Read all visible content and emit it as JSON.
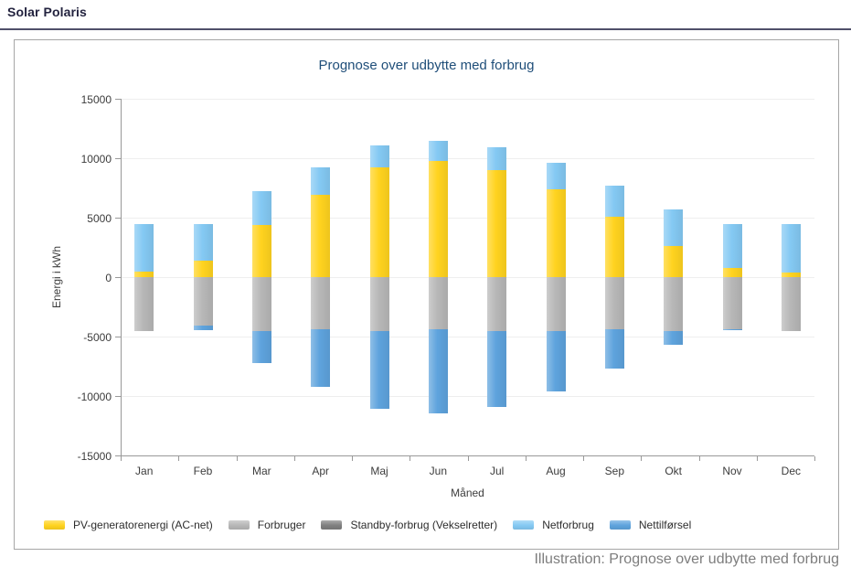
{
  "page": {
    "header_title": "Solar Polaris",
    "caption": "Illustration: Prognose over udbytte med forbrug"
  },
  "chart_data": {
    "type": "bar",
    "stacked": true,
    "title": "Prognose over udbytte med forbrug",
    "xlabel": "Måned",
    "ylabel": "Energi i kWh",
    "ylim": [
      -15000,
      15000
    ],
    "yticks": [
      15000,
      10000,
      5000,
      0,
      -5000,
      -10000,
      -15000
    ],
    "grid": true,
    "legend_position": "bottom",
    "categories": [
      "Jan",
      "Feb",
      "Mar",
      "Apr",
      "Maj",
      "Jun",
      "Jul",
      "Aug",
      "Sep",
      "Okt",
      "Nov",
      "Dec"
    ],
    "series": [
      {
        "name": "PV-generatorenergi (AC-net)",
        "color": "#ffd31f",
        "values": [
          500,
          1400,
          4400,
          6900,
          9200,
          9800,
          9000,
          7400,
          5100,
          2600,
          800,
          400
        ]
      },
      {
        "name": "Forbruger",
        "color": "#b7b7b7",
        "values": [
          -4500,
          -4050,
          -4500,
          -4350,
          -4500,
          -4350,
          -4500,
          -4500,
          -4350,
          -4500,
          -4350,
          -4500
        ]
      },
      {
        "name": "Standby-forbrug (Vekselretter)",
        "color": "#7f7f7f",
        "values": [
          0,
          0,
          0,
          0,
          0,
          0,
          0,
          0,
          0,
          0,
          0,
          0
        ]
      },
      {
        "name": "Netforbrug",
        "color": "#84c9f3",
        "values": [
          4000,
          3100,
          2800,
          2300,
          1900,
          1700,
          1900,
          2200,
          2600,
          3100,
          3700,
          4100
        ]
      },
      {
        "name": "Nettilførsel",
        "color": "#5ea3dd",
        "values": [
          0,
          -450,
          -2700,
          -4850,
          -6600,
          -7150,
          -6400,
          -5100,
          -3350,
          -1200,
          -150,
          0
        ]
      }
    ]
  }
}
